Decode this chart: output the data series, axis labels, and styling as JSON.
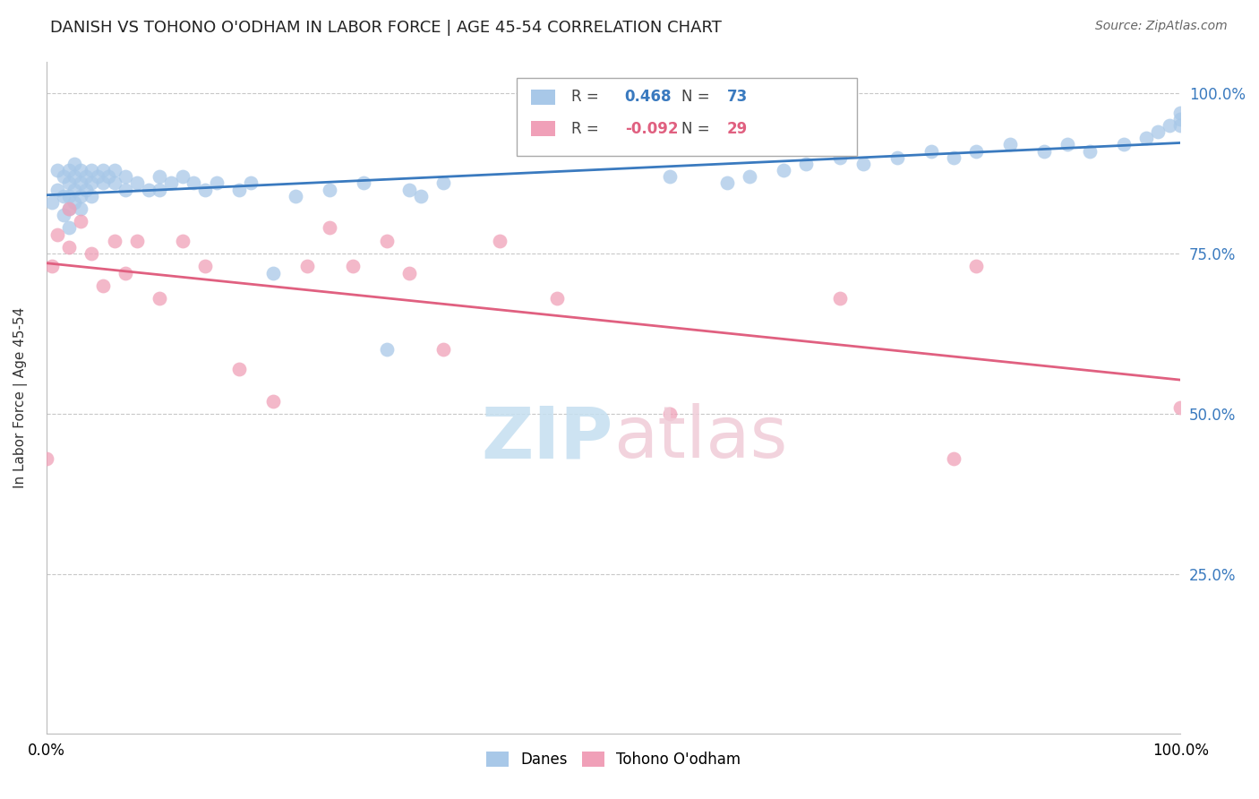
{
  "title": "DANISH VS TOHONO O'ODHAM IN LABOR FORCE | AGE 45-54 CORRELATION CHART",
  "source": "Source: ZipAtlas.com",
  "ylabel": "In Labor Force | Age 45-54",
  "xlim": [
    0.0,
    1.0
  ],
  "ylim": [
    0.0,
    1.05
  ],
  "ytick_positions_right": [
    0.25,
    0.5,
    0.75,
    1.0
  ],
  "ytick_labels_right": [
    "25.0%",
    "50.0%",
    "75.0%",
    "100.0%"
  ],
  "danish_R": 0.468,
  "danish_N": 73,
  "tohono_R": -0.092,
  "tohono_N": 29,
  "danish_color": "#a8c8e8",
  "tohono_color": "#f0a0b8",
  "danish_line_color": "#3a7abf",
  "tohono_line_color": "#e06080",
  "danish_x": [
    0.005,
    0.01,
    0.01,
    0.015,
    0.015,
    0.015,
    0.02,
    0.02,
    0.02,
    0.02,
    0.02,
    0.025,
    0.025,
    0.025,
    0.025,
    0.03,
    0.03,
    0.03,
    0.03,
    0.035,
    0.035,
    0.04,
    0.04,
    0.04,
    0.045,
    0.05,
    0.05,
    0.055,
    0.06,
    0.06,
    0.07,
    0.07,
    0.08,
    0.09,
    0.1,
    0.1,
    0.11,
    0.12,
    0.13,
    0.14,
    0.15,
    0.17,
    0.18,
    0.2,
    0.22,
    0.25,
    0.28,
    0.3,
    0.32,
    0.33,
    0.35,
    0.55,
    0.6,
    0.62,
    0.65,
    0.67,
    0.7,
    0.72,
    0.75,
    0.78,
    0.8,
    0.82,
    0.85,
    0.88,
    0.9,
    0.92,
    0.95,
    0.97,
    0.98,
    0.99,
    1.0,
    1.0,
    1.0
  ],
  "danish_y": [
    0.83,
    0.88,
    0.85,
    0.87,
    0.84,
    0.81,
    0.88,
    0.86,
    0.84,
    0.82,
    0.79,
    0.89,
    0.87,
    0.85,
    0.83,
    0.88,
    0.86,
    0.84,
    0.82,
    0.87,
    0.85,
    0.88,
    0.86,
    0.84,
    0.87,
    0.88,
    0.86,
    0.87,
    0.88,
    0.86,
    0.87,
    0.85,
    0.86,
    0.85,
    0.87,
    0.85,
    0.86,
    0.87,
    0.86,
    0.85,
    0.86,
    0.85,
    0.86,
    0.72,
    0.84,
    0.85,
    0.86,
    0.6,
    0.85,
    0.84,
    0.86,
    0.87,
    0.86,
    0.87,
    0.88,
    0.89,
    0.9,
    0.89,
    0.9,
    0.91,
    0.9,
    0.91,
    0.92,
    0.91,
    0.92,
    0.91,
    0.92,
    0.93,
    0.94,
    0.95,
    0.97,
    0.96,
    0.95
  ],
  "tohono_x": [
    0.0,
    0.005,
    0.01,
    0.02,
    0.02,
    0.03,
    0.04,
    0.05,
    0.06,
    0.07,
    0.08,
    0.1,
    0.12,
    0.14,
    0.17,
    0.2,
    0.23,
    0.25,
    0.27,
    0.3,
    0.32,
    0.35,
    0.4,
    0.45,
    0.55,
    0.7,
    0.8,
    0.82,
    1.0
  ],
  "tohono_y": [
    0.43,
    0.73,
    0.78,
    0.82,
    0.76,
    0.8,
    0.75,
    0.7,
    0.77,
    0.72,
    0.77,
    0.68,
    0.77,
    0.73,
    0.57,
    0.52,
    0.73,
    0.79,
    0.73,
    0.77,
    0.72,
    0.6,
    0.77,
    0.68,
    0.5,
    0.68,
    0.43,
    0.73,
    0.51
  ]
}
